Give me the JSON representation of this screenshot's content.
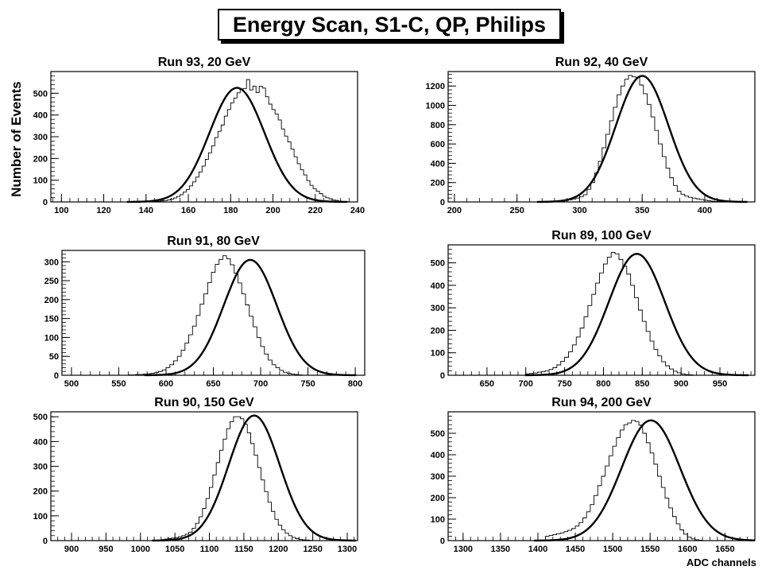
{
  "figure": {
    "title": "Energy Scan, S1-C, QP, Philips",
    "ylabel": "Number of Events",
    "xlabel": "ADC channels"
  },
  "chart_data": [
    {
      "type": "histogram",
      "title": "Run 93,  20 GeV",
      "xlim": [
        95,
        240
      ],
      "ylim": [
        0,
        600
      ],
      "xticks": [
        100,
        120,
        140,
        160,
        180,
        200,
        220,
        240
      ],
      "yticks": [
        0,
        100,
        200,
        300,
        400,
        500
      ],
      "fit": {
        "mean": 183,
        "sigma": 13,
        "amplitude": 525
      },
      "bins": {
        "start": 144,
        "width": 1.5,
        "counts": [
          2,
          3,
          5,
          6,
          9,
          13,
          18,
          25,
          33,
          45,
          57,
          74,
          92,
          114,
          138,
          165,
          196,
          226,
          258,
          296,
          325,
          354,
          395,
          425,
          456,
          478,
          502,
          520,
          522,
          563,
          515,
          533,
          503,
          532,
          524,
          484,
          450,
          425,
          405,
          377,
          336,
          303,
          276,
          243,
          208,
          176,
          148,
          124,
          98,
          76,
          61,
          49,
          38,
          26,
          19,
          14,
          9,
          7,
          4,
          2,
          2
        ]
      }
    },
    {
      "type": "histogram",
      "title": "Run 92, 40 GeV",
      "xlim": [
        195,
        440
      ],
      "ylim": [
        0,
        1350
      ],
      "xticks": [
        200,
        250,
        300,
        350,
        400
      ],
      "yticks": [
        0,
        200,
        400,
        600,
        800,
        1000,
        1200
      ],
      "fit": {
        "mean": 350,
        "sigma": 21,
        "amplitude": 1305
      },
      "bins": {
        "start": 285,
        "width": 3,
        "counts": [
          8,
          14,
          22,
          30,
          40,
          55,
          75,
          130,
          200,
          300,
          420,
          560,
          700,
          840,
          980,
          1110,
          1200,
          1270,
          1310,
          1295,
          1290,
          1210,
          1120,
          1010,
          880,
          740,
          600,
          470,
          350,
          250,
          170,
          110,
          80,
          60,
          48,
          40,
          32,
          25,
          18,
          12,
          8,
          5,
          3,
          2,
          1
        ]
      }
    },
    {
      "type": "histogram",
      "title": "Run 91, 80 GeV",
      "xlim": [
        490,
        810
      ],
      "ylim": [
        0,
        330
      ],
      "xticks": [
        500,
        550,
        600,
        650,
        700,
        750,
        800
      ],
      "yticks": [
        0,
        50,
        100,
        150,
        200,
        250,
        300
      ],
      "fit": {
        "mean": 689,
        "sigma": 28,
        "amplitude": 305
      },
      "bins": {
        "start": 560,
        "width": 4,
        "counts": [
          1,
          1,
          2,
          2,
          3,
          4,
          5,
          7,
          10,
          14,
          20,
          28,
          38,
          50,
          66,
          85,
          107,
          130,
          158,
          188,
          215,
          245,
          272,
          293,
          306,
          316,
          308,
          292,
          270,
          244,
          215,
          186,
          156,
          128,
          100,
          76,
          56,
          40,
          28,
          20,
          13,
          8,
          5,
          3,
          2,
          1
        ]
      }
    },
    {
      "type": "histogram",
      "title": "Run 89, 100 GeV",
      "xlim": [
        600,
        995
      ],
      "ylim": [
        0,
        580
      ],
      "xticks": [
        650,
        700,
        750,
        800,
        850,
        900,
        950
      ],
      "yticks": [
        0,
        100,
        200,
        300,
        400,
        500
      ],
      "fit": {
        "mean": 843,
        "sigma": 36,
        "amplitude": 540
      },
      "bins": {
        "start": 700,
        "width": 5,
        "counts": [
          6,
          8,
          10,
          14,
          16,
          20,
          26,
          34,
          46,
          62,
          80,
          104,
          135,
          170,
          210,
          260,
          310,
          360,
          410,
          455,
          495,
          525,
          546,
          540,
          515,
          485,
          450,
          400,
          345,
          290,
          240,
          195,
          152,
          115,
          86,
          60,
          42,
          28,
          18,
          11,
          6,
          3,
          2
        ]
      }
    },
    {
      "type": "histogram",
      "title": "Run 90, 150 GeV",
      "xlim": [
        870,
        1315
      ],
      "ylim": [
        0,
        520
      ],
      "xticks": [
        900,
        950,
        1000,
        1050,
        1100,
        1150,
        1200,
        1250,
        1300
      ],
      "yticks": [
        0,
        100,
        200,
        300,
        400,
        500
      ],
      "fit": {
        "mean": 1165,
        "sigma": 37,
        "amplitude": 505
      },
      "bins": {
        "start": 1030,
        "width": 5,
        "counts": [
          4,
          6,
          8,
          10,
          12,
          16,
          20,
          26,
          34,
          50,
          70,
          96,
          130,
          170,
          215,
          265,
          315,
          365,
          410,
          452,
          480,
          500,
          500,
          492,
          470,
          435,
          392,
          345,
          295,
          245,
          198,
          155,
          118,
          86,
          62,
          44,
          30,
          20,
          13,
          8,
          5,
          3,
          2,
          1
        ]
      }
    },
    {
      "type": "histogram",
      "title": "Run 94, 200 GeV",
      "xlim": [
        1280,
        1690
      ],
      "ylim": [
        0,
        600
      ],
      "xticks": [
        1300,
        1350,
        1400,
        1450,
        1500,
        1550,
        1600,
        1650
      ],
      "yticks": [
        0,
        100,
        200,
        300,
        400,
        500
      ],
      "fit": {
        "mean": 1551,
        "sigma": 39,
        "amplitude": 560
      },
      "bins": {
        "start": 1410,
        "width": 5,
        "counts": [
          20,
          24,
          28,
          32,
          36,
          42,
          48,
          56,
          68,
          84,
          106,
          134,
          168,
          210,
          256,
          300,
          348,
          395,
          440,
          480,
          515,
          540,
          548,
          560,
          555,
          538,
          500,
          456,
          408,
          356,
          300,
          248,
          198,
          152,
          112,
          78,
          50,
          30,
          16,
          8,
          4,
          2
        ]
      }
    }
  ]
}
